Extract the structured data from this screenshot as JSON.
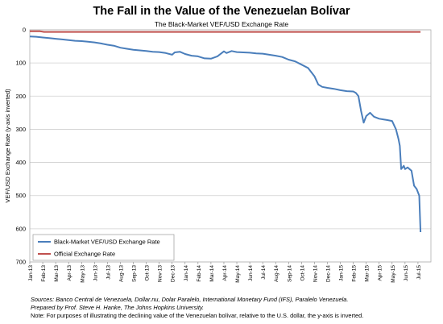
{
  "chart_data": {
    "type": "line",
    "title": "The Fall in the Value of the Venezuelan Bolívar",
    "subtitle": "The Black-Market VEF/USD Exchange Rate",
    "ylabel": "VEF/USD Exchange Rate (y-axis inverted)",
    "xlabel": "",
    "y_inverted": true,
    "ylim": [
      0,
      700
    ],
    "y_ticks": [
      0,
      100,
      200,
      300,
      400,
      500,
      600,
      700
    ],
    "x_tick_labels": [
      "Jan-13",
      "Feb-13",
      "Mar-13",
      "Apr-13",
      "May-13",
      "Jun-13",
      "Jul-13",
      "Aug-13",
      "Sep-13",
      "Oct-13",
      "Nov-13",
      "Dec-13",
      "Jan-14",
      "Feb-14",
      "Mar-14",
      "Apr-14",
      "May-14",
      "Jun-14",
      "Jul-14",
      "Aug-14",
      "Sep-14",
      "Oct-14",
      "Nov-14",
      "Dec-14",
      "Jan-15",
      "Feb-15",
      "Mar-15",
      "Apr-15",
      "May-15",
      "Jun-15",
      "Jul-15"
    ],
    "grid": true,
    "legend_placement": "bottom-left",
    "series": [
      {
        "name": "Black-Market VEF/USD Exchange Rate",
        "color": "#4a7ebb",
        "x": [
          0,
          0.5,
          1,
          1.5,
          2,
          2.5,
          3,
          3.5,
          4,
          4.5,
          5,
          5.5,
          6,
          6.5,
          7,
          7.5,
          8,
          8.5,
          9,
          9.5,
          10,
          10.5,
          11,
          11.2,
          11.6,
          12,
          12.5,
          13,
          13.5,
          14,
          14.5,
          15,
          15.2,
          15.6,
          16,
          16.5,
          17,
          17.5,
          18,
          18.5,
          19,
          19.5,
          20,
          20.5,
          21,
          21.5,
          22,
          22.3,
          22.6,
          23,
          23.5,
          24,
          24.5,
          25,
          25.2,
          25.4,
          25.6,
          25.8,
          26,
          26.3,
          26.6,
          27,
          27.3,
          27.6,
          28,
          28.3,
          28.5,
          28.6,
          28.7,
          28.9,
          29,
          29.2,
          29.5,
          29.7,
          29.9,
          30,
          30.1,
          30.2
        ],
        "y": [
          20,
          21,
          23,
          25,
          27,
          29,
          31,
          33,
          34,
          36,
          38,
          41,
          45,
          48,
          54,
          57,
          60,
          62,
          64,
          66,
          67,
          70,
          75,
          68,
          66,
          73,
          78,
          80,
          86,
          87,
          80,
          65,
          70,
          64,
          67,
          68,
          69,
          71,
          72,
          75,
          78,
          82,
          90,
          95,
          105,
          115,
          140,
          165,
          172,
          175,
          178,
          182,
          185,
          186,
          190,
          200,
          245,
          280,
          260,
          250,
          262,
          268,
          270,
          272,
          275,
          300,
          330,
          350,
          420,
          410,
          420,
          415,
          425,
          470,
          480,
          490,
          500,
          610
        ]
      },
      {
        "name": "Official Exchange Rate",
        "color": "#c0504d",
        "x": [
          0,
          0.8,
          1.1,
          30.2
        ],
        "y": [
          4.3,
          4.3,
          6.3,
          6.3
        ]
      }
    ]
  },
  "sources_label": "Sources: ",
  "sources_text": "Banco Central de Venezuela, Dollar.nu, Dolar Paralelo, International Monetary Fund (IFS), Paralelo Venezuela.",
  "prepared_text": "Prepared by Prof. Steve H. Hanke, The Johns Hopkins University.",
  "note_text": "Note: For purposes of illustrating the declining value of the Venezuelan bolívar, relative to the U.S. dollar, the y-axis is inverted."
}
